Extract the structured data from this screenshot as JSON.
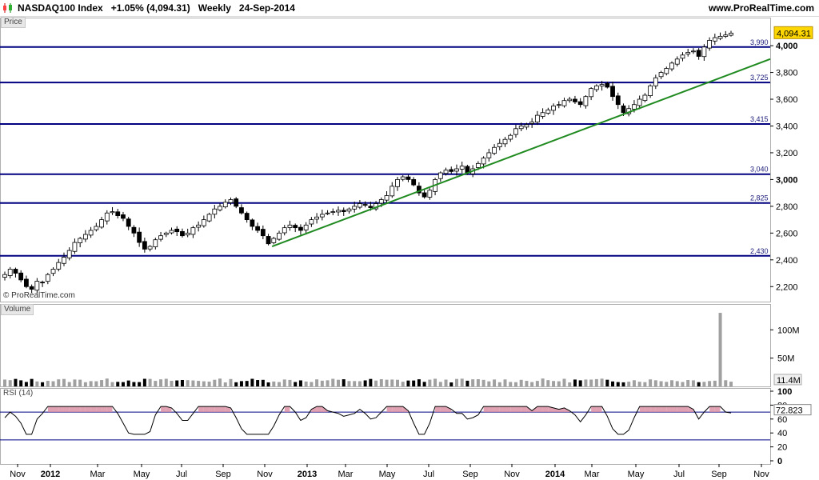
{
  "header": {
    "title": "NASDAQ100 Index   +1.05% (4,094.31)   Weekly   24-Sep-2014",
    "site": "www.ProRealTime.com"
  },
  "panels": {
    "price_tag": "Price",
    "volume_tag": "Volume",
    "rsi_tag": "RSI (14)",
    "copyright": "© ProRealTime.com"
  },
  "colors": {
    "candle_up": "#ffffff",
    "candle_down": "#000000",
    "support_line": "#000080",
    "trend_line": "#1f8a1f",
    "last_price_bg": "#ffd700",
    "rsi_line": "#000000",
    "rsi_over": "#d88aa0"
  },
  "chart_data": [
    {
      "type": "candlestick",
      "title": "NASDAQ100 Index",
      "timeframe": "Weekly",
      "last_price": "4,094.31",
      "ylim": [
        2100,
        4150
      ],
      "yticks": [
        2200,
        2400,
        2600,
        2800,
        3000,
        3200,
        3400,
        3600,
        3800,
        4000
      ],
      "ytick_labels": [
        "2,200",
        "2,400",
        "2,600",
        "2,800",
        "3,000",
        "3,200",
        "3,400",
        "3,600",
        "3,800",
        "4,000"
      ],
      "levels": [
        {
          "value": 3990,
          "label": "3,990"
        },
        {
          "value": 3725,
          "label": "3,725"
        },
        {
          "value": 3415,
          "label": "3,415"
        },
        {
          "value": 3040,
          "label": "3,040"
        },
        {
          "value": 2825,
          "label": "2,825"
        },
        {
          "value": 2430,
          "label": "2,430"
        }
      ],
      "trendline": {
        "from": {
          "date": "2012-11-16",
          "value": 2500
        },
        "to": {
          "date": "2014-11-14",
          "value": 3900
        }
      },
      "x_axis_labels": [
        "Nov",
        "2012",
        "Mar",
        "May",
        "Jul",
        "Sep",
        "Nov",
        "2013",
        "Mar",
        "May",
        "Jul",
        "Sep",
        "Nov",
        "2014",
        "Mar",
        "May",
        "Jul",
        "Sep",
        "Nov"
      ],
      "series_close_approx": [
        2290,
        2330,
        2300,
        2250,
        2200,
        2180,
        2240,
        2230,
        2290,
        2330,
        2380,
        2420,
        2470,
        2530,
        2560,
        2590,
        2620,
        2650,
        2700,
        2750,
        2760,
        2730,
        2710,
        2650,
        2600,
        2530,
        2480,
        2500,
        2550,
        2580,
        2600,
        2620,
        2610,
        2580,
        2600,
        2640,
        2660,
        2700,
        2740,
        2780,
        2800,
        2830,
        2850,
        2800,
        2750,
        2700,
        2650,
        2620,
        2580,
        2520,
        2560,
        2600,
        2640,
        2660,
        2640,
        2620,
        2660,
        2700,
        2720,
        2740,
        2750,
        2760,
        2770,
        2760,
        2780,
        2800,
        2820,
        2810,
        2790,
        2820,
        2850,
        2880,
        2950,
        3000,
        3020,
        3000,
        2960,
        2900,
        2870,
        2920,
        3000,
        3050,
        3070,
        3060,
        3080,
        3100,
        3050,
        3080,
        3120,
        3160,
        3200,
        3240,
        3270,
        3300,
        3330,
        3380,
        3400,
        3410,
        3430,
        3480,
        3500,
        3520,
        3550,
        3560,
        3590,
        3600,
        3580,
        3560,
        3620,
        3680,
        3700,
        3710,
        3690,
        3620,
        3560,
        3500,
        3530,
        3560,
        3600,
        3630,
        3700,
        3760,
        3800,
        3830,
        3870,
        3900,
        3930,
        3950,
        3960,
        3920,
        3990,
        4040,
        4060,
        4070,
        4080,
        4094
      ]
    },
    {
      "type": "bar",
      "title": "Volume",
      "ytick_labels": [
        "100M",
        "50M"
      ],
      "yticks": [
        100,
        50
      ],
      "last_value_label": "11.4M",
      "spike_value": 130,
      "ylim": [
        0,
        140
      ]
    },
    {
      "type": "line",
      "title": "RSI (14)",
      "ylim": [
        0,
        100
      ],
      "yticks": [
        100,
        80,
        60,
        40,
        20,
        0
      ],
      "last_value_label": "72.823",
      "levels": [
        70,
        30
      ]
    }
  ]
}
